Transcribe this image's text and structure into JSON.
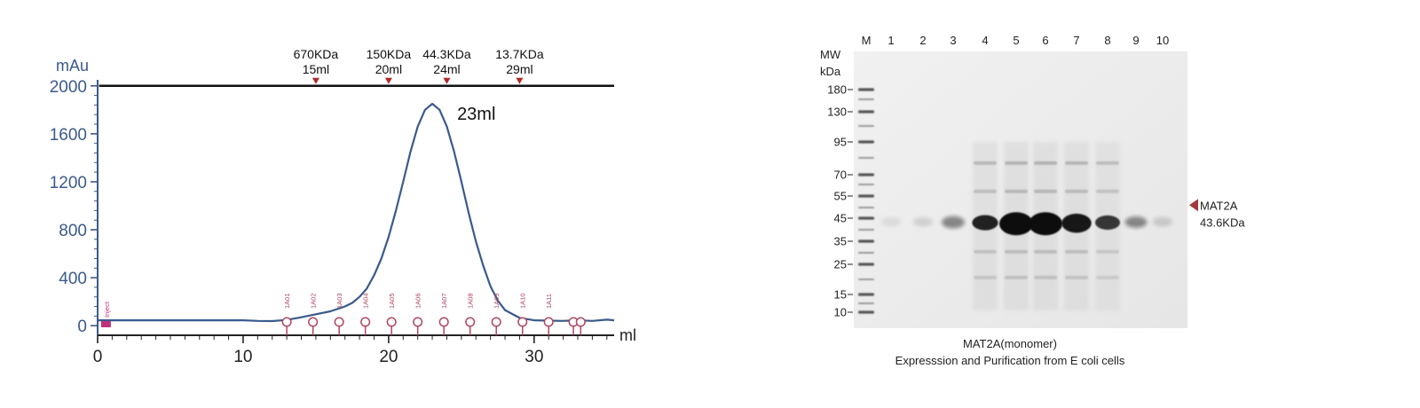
{
  "chart_data": [
    {
      "type": "line",
      "title": "",
      "xlabel": "ml",
      "ylabel": "mAu",
      "xlim": [
        0,
        35.5
      ],
      "ylim": [
        -80,
        2050
      ],
      "xticks": [
        0,
        10,
        20,
        30
      ],
      "yticks": [
        0,
        400,
        800,
        1200,
        1600,
        2000
      ],
      "grid": false,
      "series": [
        {
          "x": [
            0,
            2,
            4,
            6,
            8,
            10,
            11,
            12,
            13,
            14,
            15,
            16,
            17,
            17.5,
            18,
            18.5,
            19,
            19.5,
            20,
            20.5,
            21,
            21.5,
            22,
            22.5,
            23,
            23.5,
            24,
            24.5,
            25,
            25.5,
            26,
            26.5,
            27,
            27.5,
            28,
            29,
            30,
            31,
            32,
            33,
            34,
            35,
            35.5
          ],
          "y": [
            45,
            45,
            45,
            45,
            45,
            45,
            40,
            38,
            48,
            70,
            95,
            120,
            160,
            190,
            240,
            310,
            420,
            560,
            740,
            960,
            1200,
            1450,
            1660,
            1800,
            1850,
            1800,
            1660,
            1450,
            1200,
            940,
            700,
            500,
            330,
            210,
            130,
            65,
            45,
            42,
            40,
            45,
            40,
            50,
            45
          ]
        }
      ],
      "annotations": [
        {
          "text": "23ml",
          "x": 23,
          "y": 1850
        }
      ],
      "markers": [
        {
          "mw": "670KDa",
          "volume": "15ml",
          "x": 15
        },
        {
          "mw": "150KDa",
          "volume": "20ml",
          "x": 20
        },
        {
          "mw": "44.3KDa",
          "volume": "24ml",
          "x": 24
        },
        {
          "mw": "13.7KDa",
          "volume": "29ml",
          "x": 29
        }
      ],
      "fractions": [
        {
          "label": "Inject",
          "x": 0.3
        },
        {
          "label": "1A01",
          "x": 13
        },
        {
          "label": "1A02",
          "x": 14.8
        },
        {
          "label": "1A03",
          "x": 16.6
        },
        {
          "label": "1A04",
          "x": 18.4
        },
        {
          "label": "1A05",
          "x": 20.2
        },
        {
          "label": "1A06",
          "x": 22
        },
        {
          "label": "1A07",
          "x": 23.8
        },
        {
          "label": "1A08",
          "x": 25.6
        },
        {
          "label": "1A09",
          "x": 27.4
        },
        {
          "label": "1A10",
          "x": 29.2
        },
        {
          "label": "1A11",
          "x": 31
        },
        {
          "label": "",
          "x": 32.7
        },
        {
          "label": "",
          "x": 33.2
        }
      ],
      "colors": {
        "curve": "#3a5a8c",
        "axis": "#3a5a8c",
        "fraction": "#b0455f",
        "inject": "#c0307a"
      }
    },
    {
      "type": "gel",
      "ylabel": "MW",
      "yunit": "kDa",
      "lanes": [
        "M",
        "1",
        "2",
        "3",
        "4",
        "5",
        "6",
        "7",
        "8",
        "9",
        "10"
      ],
      "ladder_kda": [
        180,
        130,
        95,
        70,
        55,
        45,
        35,
        25,
        15,
        10
      ],
      "band_kda": 43.6,
      "band_intensity": [
        0,
        0.08,
        0.12,
        0.45,
        0.9,
        1.0,
        1.0,
        0.95,
        0.8,
        0.45,
        0.15
      ],
      "band_size": [
        0,
        0.3,
        0.3,
        0.45,
        0.6,
        1.0,
        1.0,
        0.8,
        0.55,
        0.4,
        0.3
      ],
      "target_label": "MAT2A",
      "target_mw": "43.6KDa",
      "caption_line1": "MAT2A(monomer)",
      "caption_line2": "Expresssion and Purification from E coli cells",
      "colors": {
        "gel_bg": "#efefef",
        "band": "#111111",
        "arrow": "#a23a3a"
      }
    }
  ]
}
